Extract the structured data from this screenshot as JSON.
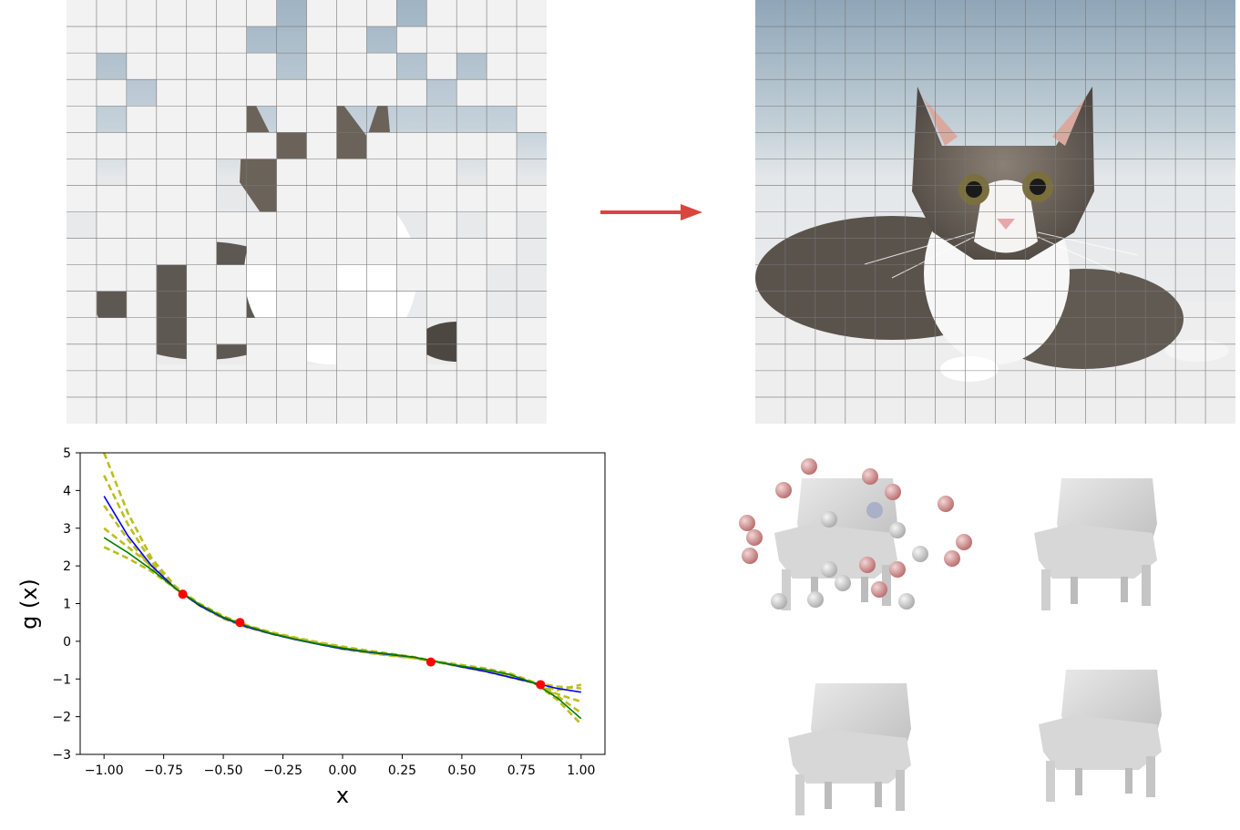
{
  "figure": {
    "masked_image": {
      "subject": "cat photo, masked grid patches"
    },
    "reconstructed_image": {
      "subject": "cat photo, full grid"
    },
    "arrow": {
      "color": "#d9463e"
    },
    "chairs": {
      "count": 4
    }
  },
  "chart_data": {
    "type": "line",
    "xlabel": "x",
    "ylabel": "g (x)",
    "xlim": [
      -1.1,
      1.1
    ],
    "ylim": [
      -3,
      5
    ],
    "xticks": [
      "-1.00",
      "-0.75",
      "-0.50",
      "-0.25",
      "0.00",
      "0.25",
      "0.50",
      "0.75",
      "1.00"
    ],
    "yticks": [
      "-3",
      "-2",
      "-1",
      "0",
      "1",
      "2",
      "3",
      "4",
      "5"
    ],
    "grid": false,
    "observations": {
      "color": "#ff0000",
      "x": [
        -0.67,
        -0.43,
        0.37,
        0.83
      ],
      "y": [
        1.25,
        0.5,
        -0.55,
        -1.15
      ]
    },
    "series": [
      {
        "color": "#0000ff",
        "style": "solid",
        "x": [
          -1.0,
          -0.9,
          -0.8,
          -0.7,
          -0.6,
          -0.5,
          -0.4,
          -0.3,
          -0.2,
          -0.1,
          0.0,
          0.1,
          0.2,
          0.3,
          0.4,
          0.5,
          0.6,
          0.7,
          0.8,
          0.9,
          1.0
        ],
        "y": [
          3.85,
          2.8,
          2.0,
          1.4,
          0.95,
          0.62,
          0.38,
          0.2,
          0.05,
          -0.08,
          -0.2,
          -0.28,
          -0.35,
          -0.42,
          -0.55,
          -0.68,
          -0.8,
          -0.95,
          -1.1,
          -1.25,
          -1.35
        ]
      },
      {
        "color": "#008000",
        "style": "solid",
        "x": [
          -1.0,
          -0.9,
          -0.8,
          -0.7,
          -0.6,
          -0.5,
          -0.4,
          -0.3,
          -0.2,
          -0.1,
          0.0,
          0.1,
          0.2,
          0.3,
          0.4,
          0.5,
          0.6,
          0.7,
          0.8,
          0.9,
          1.0
        ],
        "y": [
          2.75,
          2.35,
          1.9,
          1.4,
          0.98,
          0.64,
          0.4,
          0.21,
          0.06,
          -0.07,
          -0.18,
          -0.27,
          -0.34,
          -0.42,
          -0.55,
          -0.66,
          -0.75,
          -0.88,
          -1.1,
          -1.5,
          -2.05
        ]
      },
      {
        "color": "#bcbd22",
        "style": "dashed",
        "x": [
          -1.0,
          -0.9,
          -0.8,
          -0.7,
          -0.6,
          -0.5,
          -0.4,
          -0.3,
          -0.2,
          -0.1,
          0.0,
          0.1,
          0.2,
          0.3,
          0.4,
          0.5,
          0.6,
          0.7,
          0.8,
          0.9,
          1.0
        ],
        "y": [
          5.0,
          3.4,
          2.2,
          1.45,
          0.95,
          0.6,
          0.37,
          0.2,
          0.06,
          -0.07,
          -0.2,
          -0.3,
          -0.38,
          -0.45,
          -0.56,
          -0.66,
          -0.78,
          -0.95,
          -1.1,
          -1.2,
          -1.25
        ]
      },
      {
        "color": "#bcbd22",
        "style": "dashed",
        "x": [
          -1.0,
          -0.9,
          -0.8,
          -0.7,
          -0.6,
          -0.5,
          -0.4,
          -0.3,
          -0.2,
          -0.1,
          0.0,
          0.1,
          0.2,
          0.3,
          0.4,
          0.5,
          0.6,
          0.7,
          0.8,
          0.9,
          1.0
        ],
        "y": [
          4.4,
          3.1,
          2.1,
          1.4,
          0.95,
          0.63,
          0.4,
          0.22,
          0.08,
          -0.05,
          -0.17,
          -0.27,
          -0.36,
          -0.44,
          -0.56,
          -0.68,
          -0.8,
          -0.95,
          -1.1,
          -1.4,
          -1.6
        ]
      },
      {
        "color": "#bcbd22",
        "style": "dashed",
        "x": [
          -1.0,
          -0.9,
          -0.8,
          -0.7,
          -0.6,
          -0.5,
          -0.4,
          -0.3,
          -0.2,
          -0.1,
          0.0,
          0.1,
          0.2,
          0.3,
          0.4,
          0.5,
          0.6,
          0.7,
          0.8,
          0.9,
          1.0
        ],
        "y": [
          3.0,
          2.5,
          2.0,
          1.45,
          1.0,
          0.67,
          0.42,
          0.24,
          0.1,
          -0.03,
          -0.14,
          -0.24,
          -0.33,
          -0.42,
          -0.54,
          -0.63,
          -0.72,
          -0.85,
          -1.08,
          -1.55,
          -2.2
        ]
      },
      {
        "color": "#bcbd22",
        "style": "dashed",
        "x": [
          -1.0,
          -0.9,
          -0.8,
          -0.7,
          -0.6,
          -0.5,
          -0.4,
          -0.3,
          -0.2,
          -0.1,
          0.0,
          0.1,
          0.2,
          0.3,
          0.4,
          0.5,
          0.6,
          0.7,
          0.8,
          0.9,
          1.0
        ],
        "y": [
          2.5,
          2.2,
          1.85,
          1.4,
          0.98,
          0.65,
          0.41,
          0.23,
          0.08,
          -0.05,
          -0.16,
          -0.26,
          -0.34,
          -0.42,
          -0.55,
          -0.64,
          -0.74,
          -0.88,
          -1.1,
          -1.3,
          -1.15
        ]
      },
      {
        "color": "#bcbd22",
        "style": "dashed",
        "x": [
          -1.0,
          -0.9,
          -0.8,
          -0.7,
          -0.6,
          -0.5,
          -0.4,
          -0.3,
          -0.2,
          -0.1,
          0.0,
          0.1,
          0.2,
          0.3,
          0.4,
          0.5,
          0.6,
          0.7,
          0.8,
          0.9,
          1.0
        ],
        "y": [
          3.6,
          2.7,
          1.95,
          1.4,
          0.96,
          0.62,
          0.39,
          0.21,
          0.07,
          -0.06,
          -0.18,
          -0.29,
          -0.37,
          -0.44,
          -0.55,
          -0.67,
          -0.79,
          -0.92,
          -1.1,
          -1.45,
          -1.9
        ]
      }
    ]
  }
}
